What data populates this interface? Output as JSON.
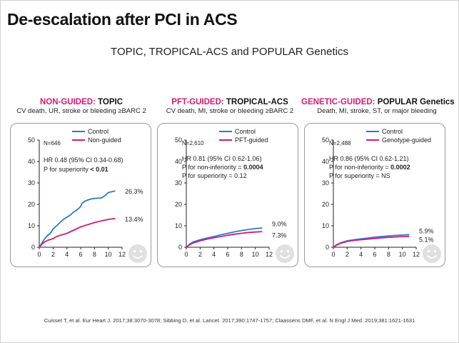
{
  "slide": {
    "title": "De-escalation after PCI in ACS",
    "subtitle": "TOPIC, TROPICAL-ACS and POPULAR Genetics",
    "citation": "Cuisset T, et al. Eur Heart J. 2017;38:3070-3078; Sibbing D, et al. Lancet. 2017;390:1747-1757; Claassens DMF, et al. N Engl J Med. 2019;381:1621-1631"
  },
  "colors": {
    "control": "#2e78c4",
    "deescalation": "#d21b7a",
    "axis": "#222222",
    "panel_border": "#9a9a9a",
    "smiley": "#e0e0e0"
  },
  "panels": [
    {
      "kw": "NON-GUIDED:",
      "name": " TOPIC",
      "sub": "CV death, UR, stroke or bleeding ≥BARC 2",
      "n": "N=646",
      "stats": [
        "HR 0.48 (95% CI 0.34-0.68)",
        "P for superiority "
      ],
      "stat_bold": "< 0.01",
      "legend": [
        "Control",
        "Non-guided"
      ],
      "end_labels": [
        "26.3%",
        "13.4%"
      ],
      "icon": "smiley-face-icon"
    },
    {
      "kw": "PFT-GUIDED:",
      "name": " TROPICAL-ACS",
      "sub": "CV death, MI, stroke or bleeding ≥BARC 2",
      "n": "N=2,610",
      "stats": [
        "HR 0.81 (95% CI 0.62-1.06)",
        "P for non-inferiority = ",
        "P for superiority = 0.12"
      ],
      "stat_bold": "0.0004",
      "legend": [
        "Control",
        "PFT-guided"
      ],
      "end_labels": [
        "9.0%",
        "7.3%"
      ],
      "icon": "smiley-face-icon"
    },
    {
      "kw": "GENETIC-GUIDED:",
      "name": " POPULAR Genetics",
      "sub": "Death, MI, stroke, ST, or major bleeding",
      "n": "N=2,488",
      "stats": [
        "HR 0.86 (95% CI 0.62-1.21)",
        "P for non-inferiority = ",
        "P for superiority = NS"
      ],
      "stat_bold": "0.0002",
      "legend": [
        "Control",
        "Genotype-guided"
      ],
      "end_labels": [
        "5.9%",
        "5.1%"
      ],
      "icon": "smiley-face-icon"
    }
  ],
  "chart_data": [
    {
      "type": "line",
      "xlim": [
        0,
        12
      ],
      "ylim": [
        0,
        50
      ],
      "xticks": [
        0,
        2,
        4,
        6,
        8,
        10,
        12
      ],
      "yticks": [
        0,
        10,
        20,
        30,
        40,
        50
      ],
      "series": [
        {
          "name": "Control",
          "color": "#2e78c4",
          "points": [
            [
              0,
              0
            ],
            [
              0.4,
              2
            ],
            [
              0.8,
              4
            ],
            [
              1.2,
              5.5
            ],
            [
              1.6,
              6.5
            ],
            [
              2,
              8.5
            ],
            [
              2.5,
              10
            ],
            [
              3,
              11.5
            ],
            [
              3.5,
              13
            ],
            [
              4,
              14
            ],
            [
              4.5,
              15
            ],
            [
              5,
              16.5
            ],
            [
              5.5,
              17.5
            ],
            [
              6,
              19
            ],
            [
              6.2,
              20.5
            ],
            [
              6.6,
              21.5
            ],
            [
              7,
              22
            ],
            [
              7.5,
              22.5
            ],
            [
              8,
              22.8
            ],
            [
              9,
              23
            ],
            [
              9.5,
              24
            ],
            [
              10,
              25.5
            ],
            [
              11,
              26.3
            ]
          ]
        },
        {
          "name": "Non-guided",
          "color": "#d21b7a",
          "points": [
            [
              0,
              0
            ],
            [
              0.4,
              1.5
            ],
            [
              0.8,
              2.5
            ],
            [
              1.2,
              3.2
            ],
            [
              2,
              4
            ],
            [
              2.5,
              5
            ],
            [
              3,
              5.5
            ],
            [
              4,
              6.5
            ],
            [
              5,
              8
            ],
            [
              6,
              9.5
            ],
            [
              6.5,
              10
            ],
            [
              7,
              10.5
            ],
            [
              8,
              11.5
            ],
            [
              9,
              12.3
            ],
            [
              10,
              13
            ],
            [
              11,
              13.4
            ]
          ]
        }
      ]
    },
    {
      "type": "line",
      "xlim": [
        0,
        12
      ],
      "ylim": [
        0,
        50
      ],
      "xticks": [
        0,
        2,
        4,
        6,
        8,
        10,
        12
      ],
      "yticks": [
        0,
        10,
        20,
        30,
        40,
        50
      ],
      "series": [
        {
          "name": "Control",
          "color": "#2e78c4",
          "points": [
            [
              0,
              0
            ],
            [
              0.5,
              1.5
            ],
            [
              1,
              2.5
            ],
            [
              2,
              3.5
            ],
            [
              3,
              4.3
            ],
            [
              4,
              5
            ],
            [
              5,
              5.8
            ],
            [
              6,
              6.5
            ],
            [
              7,
              7.2
            ],
            [
              8,
              7.8
            ],
            [
              9,
              8.3
            ],
            [
              10,
              8.7
            ],
            [
              11,
              9.0
            ]
          ]
        },
        {
          "name": "PFT-guided",
          "color": "#d21b7a",
          "points": [
            [
              0,
              0
            ],
            [
              0.5,
              1.2
            ],
            [
              1,
              2
            ],
            [
              2,
              3
            ],
            [
              3,
              3.8
            ],
            [
              4,
              4.4
            ],
            [
              5,
              5
            ],
            [
              6,
              5.6
            ],
            [
              7,
              6.1
            ],
            [
              8,
              6.5
            ],
            [
              9,
              6.9
            ],
            [
              10,
              7.1
            ],
            [
              11,
              7.3
            ]
          ]
        }
      ]
    },
    {
      "type": "line",
      "xlim": [
        0,
        12
      ],
      "ylim": [
        0,
        50
      ],
      "xticks": [
        0,
        2,
        4,
        6,
        8,
        10,
        12
      ],
      "yticks": [
        0,
        10,
        20,
        30,
        40,
        50
      ],
      "series": [
        {
          "name": "Control",
          "color": "#2e78c4",
          "points": [
            [
              0,
              0
            ],
            [
              0.5,
              1.2
            ],
            [
              1,
              2
            ],
            [
              2,
              3
            ],
            [
              3,
              3.5
            ],
            [
              4,
              3.9
            ],
            [
              5,
              4.3
            ],
            [
              6,
              4.7
            ],
            [
              7,
              5
            ],
            [
              8,
              5.3
            ],
            [
              9,
              5.5
            ],
            [
              10,
              5.7
            ],
            [
              11,
              5.9
            ]
          ]
        },
        {
          "name": "Genotype-guided",
          "color": "#d21b7a",
          "points": [
            [
              0,
              0
            ],
            [
              0.5,
              1
            ],
            [
              1,
              1.8
            ],
            [
              2,
              2.7
            ],
            [
              3,
              3.2
            ],
            [
              4,
              3.5
            ],
            [
              5,
              3.8
            ],
            [
              6,
              4.1
            ],
            [
              7,
              4.4
            ],
            [
              8,
              4.6
            ],
            [
              9,
              4.8
            ],
            [
              10,
              5
            ],
            [
              11,
              5.1
            ]
          ]
        }
      ]
    }
  ]
}
